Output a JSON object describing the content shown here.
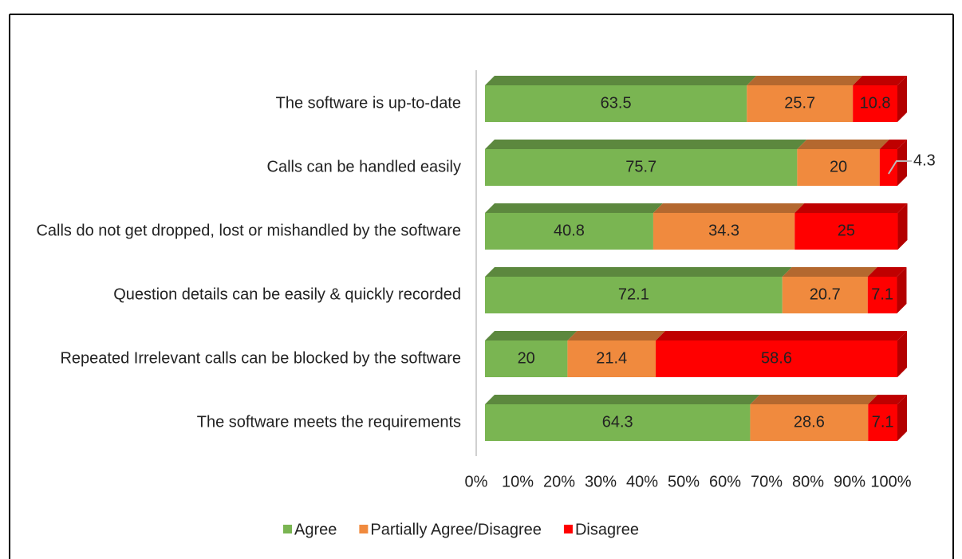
{
  "chart_data": {
    "type": "stacked_bar_horizontal",
    "categories": [
      "The software is up-to-date",
      "Calls can be handled easily",
      "Calls do not get dropped, lost or mishandled by the software",
      "Question details can be easily & quickly recorded",
      "Repeated Irrelevant calls can be blocked by the software",
      "The software meets the requirements"
    ],
    "series": [
      {
        "name": "Agree",
        "color": "#7ab552",
        "values": [
          63.5,
          75.7,
          40.8,
          72.1,
          20,
          64.3
        ]
      },
      {
        "name": "Partially Agree/Disagree",
        "color": "#f08a3e",
        "values": [
          25.7,
          20,
          34.3,
          20.7,
          21.4,
          28.6
        ]
      },
      {
        "name": "Disagree",
        "color": "#ff0000",
        "values": [
          10.8,
          4.3,
          25,
          7.1,
          58.6,
          7.1
        ]
      }
    ],
    "xlim": [
      0,
      100
    ],
    "xticks": [
      {
        "value": 0,
        "label": "0%"
      },
      {
        "value": 10,
        "label": "10%"
      },
      {
        "value": 20,
        "label": "20%"
      },
      {
        "value": 30,
        "label": "30%"
      },
      {
        "value": 40,
        "label": "40%"
      },
      {
        "value": 50,
        "label": "50%"
      },
      {
        "value": 60,
        "label": "60%"
      },
      {
        "value": 70,
        "label": "70%"
      },
      {
        "value": 80,
        "label": "80%"
      },
      {
        "value": 90,
        "label": "90%"
      },
      {
        "value": 100,
        "label": "100%"
      }
    ],
    "legend": "bottom"
  }
}
